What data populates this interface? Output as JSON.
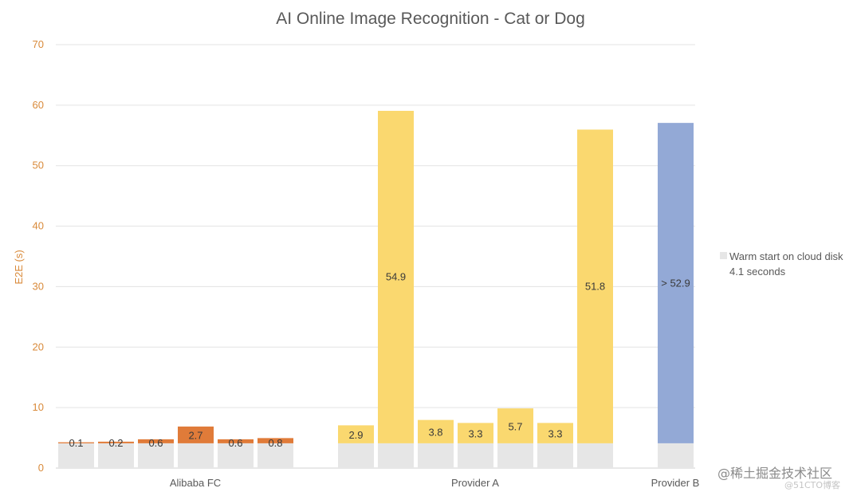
{
  "chart_data": {
    "type": "bar",
    "stacked": true,
    "title": "AI Online Image Recognition - Cat or Dog",
    "ylabel": "E2E (s)",
    "ylim": [
      0,
      70
    ],
    "y_ticks": [
      0,
      10,
      20,
      30,
      40,
      50,
      60,
      70
    ],
    "grid": true,
    "legend_position": "right",
    "legend": [
      {
        "name": "Warm start on cloud disk",
        "note": "4.1 seconds"
      }
    ],
    "groups": [
      "Alibaba FC",
      "Provider A",
      "Provider B"
    ],
    "base_value": 4.1,
    "bars": [
      {
        "group": "Alibaba FC",
        "extra": 0.1,
        "label": "0.1"
      },
      {
        "group": "Alibaba FC",
        "extra": 0.2,
        "label": "0.2"
      },
      {
        "group": "Alibaba FC",
        "extra": 0.6,
        "label": "0.6"
      },
      {
        "group": "Alibaba FC",
        "extra": 2.7,
        "label": "2.7"
      },
      {
        "group": "Alibaba FC",
        "extra": 0.6,
        "label": "0.6"
      },
      {
        "group": "Alibaba FC",
        "extra": 0.8,
        "label": "0.8"
      },
      {
        "group": "Provider A",
        "extra": 2.9,
        "label": "2.9"
      },
      {
        "group": "Provider A",
        "extra": 54.9,
        "label": "54.9"
      },
      {
        "group": "Provider A",
        "extra": 3.8,
        "label": "3.8"
      },
      {
        "group": "Provider A",
        "extra": 3.3,
        "label": "3.3"
      },
      {
        "group": "Provider A",
        "extra": 5.7,
        "label": "5.7"
      },
      {
        "group": "Provider A",
        "extra": 3.3,
        "label": "3.3"
      },
      {
        "group": "Provider A",
        "extra": 51.8,
        "label": "51.8"
      },
      {
        "group": "Provider B",
        "extra": 52.9,
        "label": "> 52.9"
      }
    ],
    "colors": {
      "base": "#e6e6e6",
      "Alibaba FC": "#e07b39",
      "Provider A": "#fad86f",
      "Provider B": "#93a9d6"
    }
  },
  "watermark": {
    "line1": "@稀土掘金技术社区",
    "line2": "@51CTO博客"
  }
}
